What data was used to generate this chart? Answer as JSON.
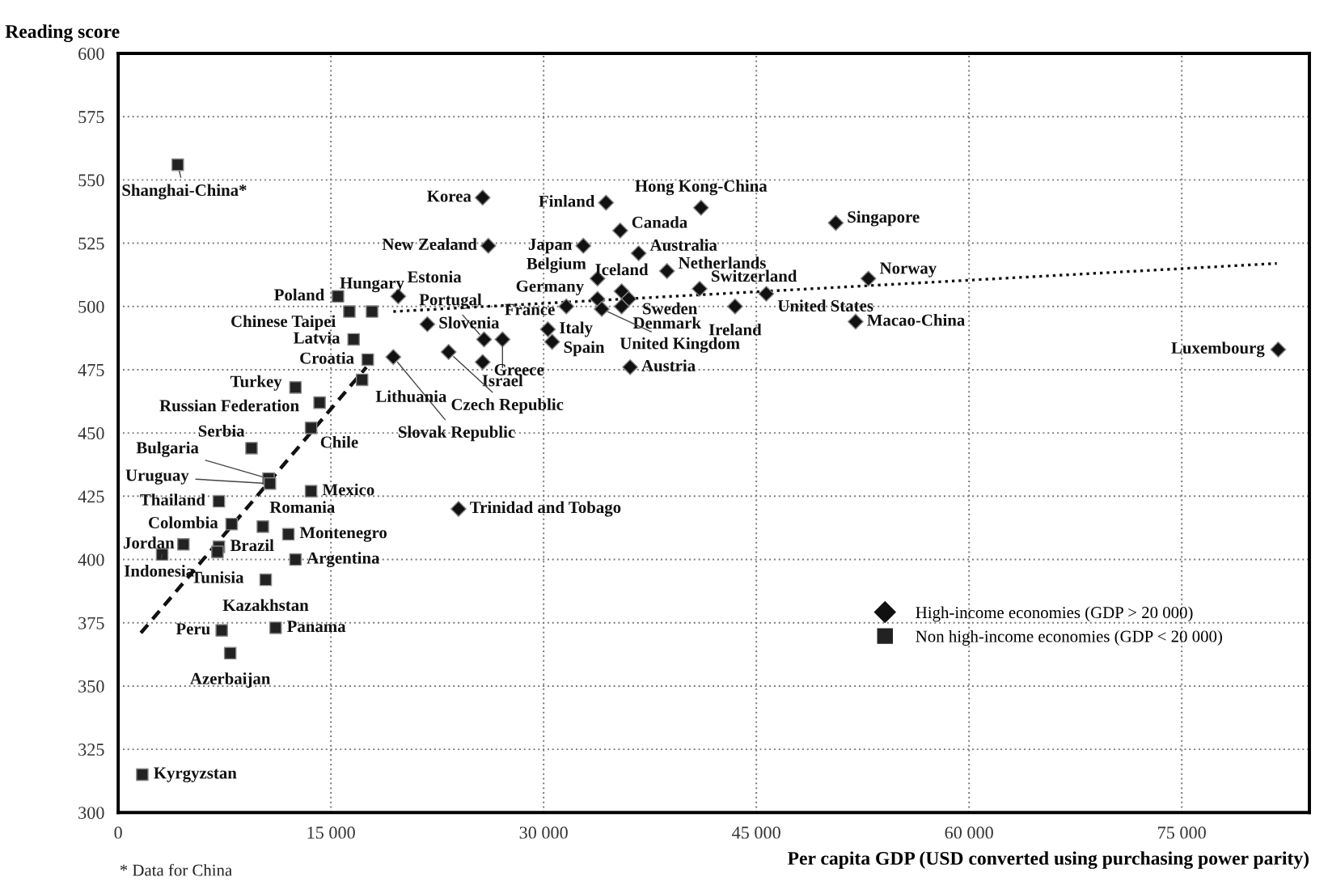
{
  "chart_data": {
    "type": "scatter",
    "xlabel": "Per capita GDP (USD converted using purchasing power parity)",
    "ylabel": "Reading score",
    "xlim": [
      0,
      84000
    ],
    "ylim": [
      300,
      600
    ],
    "xticks": [
      {
        "value": 0,
        "label": "0"
      },
      {
        "value": 15000,
        "label": "15 000"
      },
      {
        "value": 30000,
        "label": "30 000"
      },
      {
        "value": 45000,
        "label": "45 000"
      },
      {
        "value": 60000,
        "label": "60 000"
      },
      {
        "value": 75000,
        "label": "75 000"
      }
    ],
    "yticks": [
      300,
      325,
      350,
      375,
      400,
      425,
      450,
      475,
      500,
      525,
      550,
      575,
      600
    ],
    "grid": true,
    "legend": "bottom right",
    "series": [
      {
        "name": "High-income economies (GDP > 20 000)",
        "color": "#111111",
        "marker": "diamond",
        "x": [
          25700,
          34400,
          41100,
          50600,
          26100,
          32800,
          35400,
          36700,
          38700,
          35500,
          33800,
          33800,
          36000,
          35500,
          34100,
          31600,
          30300,
          30600,
          36100,
          41000,
          52900,
          45700,
          43500,
          52000,
          81800,
          19750,
          25800,
          27100,
          25700,
          21800,
          23300,
          19400,
          24000
        ],
        "values": [
          543,
          541,
          539,
          533,
          524,
          524,
          530,
          521,
          514,
          506,
          511,
          503,
          503,
          500,
          499,
          500,
          491,
          486,
          476,
          507,
          511,
          505,
          500,
          494,
          483,
          504,
          487,
          487,
          478,
          493,
          482,
          480,
          420
        ]
      },
      {
        "name": "Non high-income economies (GDP < 20 000)",
        "color": "#222222",
        "marker": "square",
        "x": [
          4200,
          15500,
          16300,
          17900,
          16600,
          17600,
          17200,
          12500,
          14200,
          13600,
          9400,
          10600,
          10700,
          10200,
          13600,
          7100,
          8000,
          7100,
          7000,
          12000,
          4600,
          3100,
          12500,
          10400,
          7300,
          11100,
          7900,
          1700
        ],
        "values": [
          556,
          504,
          498,
          498,
          487,
          479,
          471,
          468,
          462,
          452,
          444,
          432,
          430,
          413,
          427,
          423,
          414,
          405,
          403,
          410,
          406,
          402,
          400,
          392,
          372,
          373,
          363,
          315
        ]
      },
      {
        "type": "line",
        "color": "#111111",
        "line_style": "dashed",
        "x": [
          1600,
          17500
        ],
        "values": [
          371,
          476
        ]
      },
      {
        "type": "line",
        "color": "#111111",
        "line_style": "dotted",
        "x": [
          19400,
          81700
        ],
        "values": [
          498,
          517
        ]
      }
    ],
    "annotations": [
      {
        "text": "Korea",
        "x": 25700,
        "y": 543
      },
      {
        "text": "Finland",
        "x": 34400,
        "y": 541
      },
      {
        "text": "Hong Kong-China",
        "x": 41100,
        "y": 539
      },
      {
        "text": "Singapore",
        "x": 50600,
        "y": 533
      },
      {
        "text": "New Zealand",
        "x": 26100,
        "y": 524
      },
      {
        "text": "Japan",
        "x": 32800,
        "y": 524
      },
      {
        "text": "Canada",
        "x": 35400,
        "y": 530
      },
      {
        "text": "Australia",
        "x": 36700,
        "y": 521
      },
      {
        "text": "Netherlands",
        "x": 38700,
        "y": 514
      },
      {
        "text": "Iceland",
        "x": 35500,
        "y": 506
      },
      {
        "text": "Belgium",
        "x": 33800,
        "y": 511
      },
      {
        "text": "Germany",
        "x": 33800,
        "y": 503
      },
      {
        "text": "Sweden",
        "x": 36000,
        "y": 503
      },
      {
        "text": "Denmark",
        "x": 35500,
        "y": 500
      },
      {
        "text": "United Kingdom",
        "x": 34100,
        "y": 499
      },
      {
        "text": "France",
        "x": 31600,
        "y": 500
      },
      {
        "text": "Italy",
        "x": 30300,
        "y": 491
      },
      {
        "text": "Spain",
        "x": 30600,
        "y": 486
      },
      {
        "text": "Austria",
        "x": 36100,
        "y": 476
      },
      {
        "text": "Switzerland",
        "x": 41000,
        "y": 507
      },
      {
        "text": "Norway",
        "x": 52900,
        "y": 511
      },
      {
        "text": "United States",
        "x": 45700,
        "y": 505
      },
      {
        "text": "Ireland",
        "x": 43500,
        "y": 500
      },
      {
        "text": "Macao-China",
        "x": 52000,
        "y": 494
      },
      {
        "text": "Luxembourg",
        "x": 81800,
        "y": 483
      },
      {
        "text": "Estonia",
        "x": 19750,
        "y": 504
      },
      {
        "text": "Portugal",
        "x": 25800,
        "y": 487
      },
      {
        "text": "Israel",
        "x": 27100,
        "y": 487
      },
      {
        "text": "Greece",
        "x": 25700,
        "y": 478
      },
      {
        "text": "Slovenia",
        "x": 21800,
        "y": 493
      },
      {
        "text": "Czech Republic",
        "x": 23300,
        "y": 482
      },
      {
        "text": "Slovak Republic",
        "x": 19400,
        "y": 480
      },
      {
        "text": "Trinidad and Tobago",
        "x": 24000,
        "y": 420
      },
      {
        "text": "Shanghai-China*",
        "x": 4200,
        "y": 556
      },
      {
        "text": "Poland",
        "x": 15500,
        "y": 504
      },
      {
        "text": "Chinese Taipei",
        "x": 16300,
        "y": 498
      },
      {
        "text": "Hungary",
        "x": 17900,
        "y": 498
      },
      {
        "text": "Latvia",
        "x": 16600,
        "y": 487
      },
      {
        "text": "Croatia",
        "x": 17600,
        "y": 479
      },
      {
        "text": "Lithuania",
        "x": 17200,
        "y": 471
      },
      {
        "text": "Turkey",
        "x": 12500,
        "y": 468
      },
      {
        "text": "Russian Federation",
        "x": 14200,
        "y": 462
      },
      {
        "text": "Chile",
        "x": 13600,
        "y": 452
      },
      {
        "text": "Serbia",
        "x": 9400,
        "y": 444
      },
      {
        "text": "Bulgaria",
        "x": 10600,
        "y": 432
      },
      {
        "text": "Uruguay",
        "x": 10700,
        "y": 430
      },
      {
        "text": "Romania",
        "x": 10200,
        "y": 413
      },
      {
        "text": "Mexico",
        "x": 13600,
        "y": 427
      },
      {
        "text": "Thailand",
        "x": 7100,
        "y": 423
      },
      {
        "text": "Colombia",
        "x": 8000,
        "y": 414
      },
      {
        "text": "Brazil",
        "x": 7100,
        "y": 405
      },
      {
        "text": "Tunisia",
        "x": 7000,
        "y": 403
      },
      {
        "text": "Montenegro",
        "x": 12000,
        "y": 410
      },
      {
        "text": "Jordan",
        "x": 4600,
        "y": 406
      },
      {
        "text": "Indonesia",
        "x": 3100,
        "y": 402
      },
      {
        "text": "Argentina",
        "x": 12500,
        "y": 400
      },
      {
        "text": "Kazakhstan",
        "x": 10400,
        "y": 392
      },
      {
        "text": "Peru",
        "x": 7300,
        "y": 372
      },
      {
        "text": "Panama",
        "x": 11100,
        "y": 373
      },
      {
        "text": "Azerbaijan",
        "x": 7900,
        "y": 363
      },
      {
        "text": "Kyrgyzstan",
        "x": 1700,
        "y": 315
      },
      "* Data for China"
    ]
  }
}
